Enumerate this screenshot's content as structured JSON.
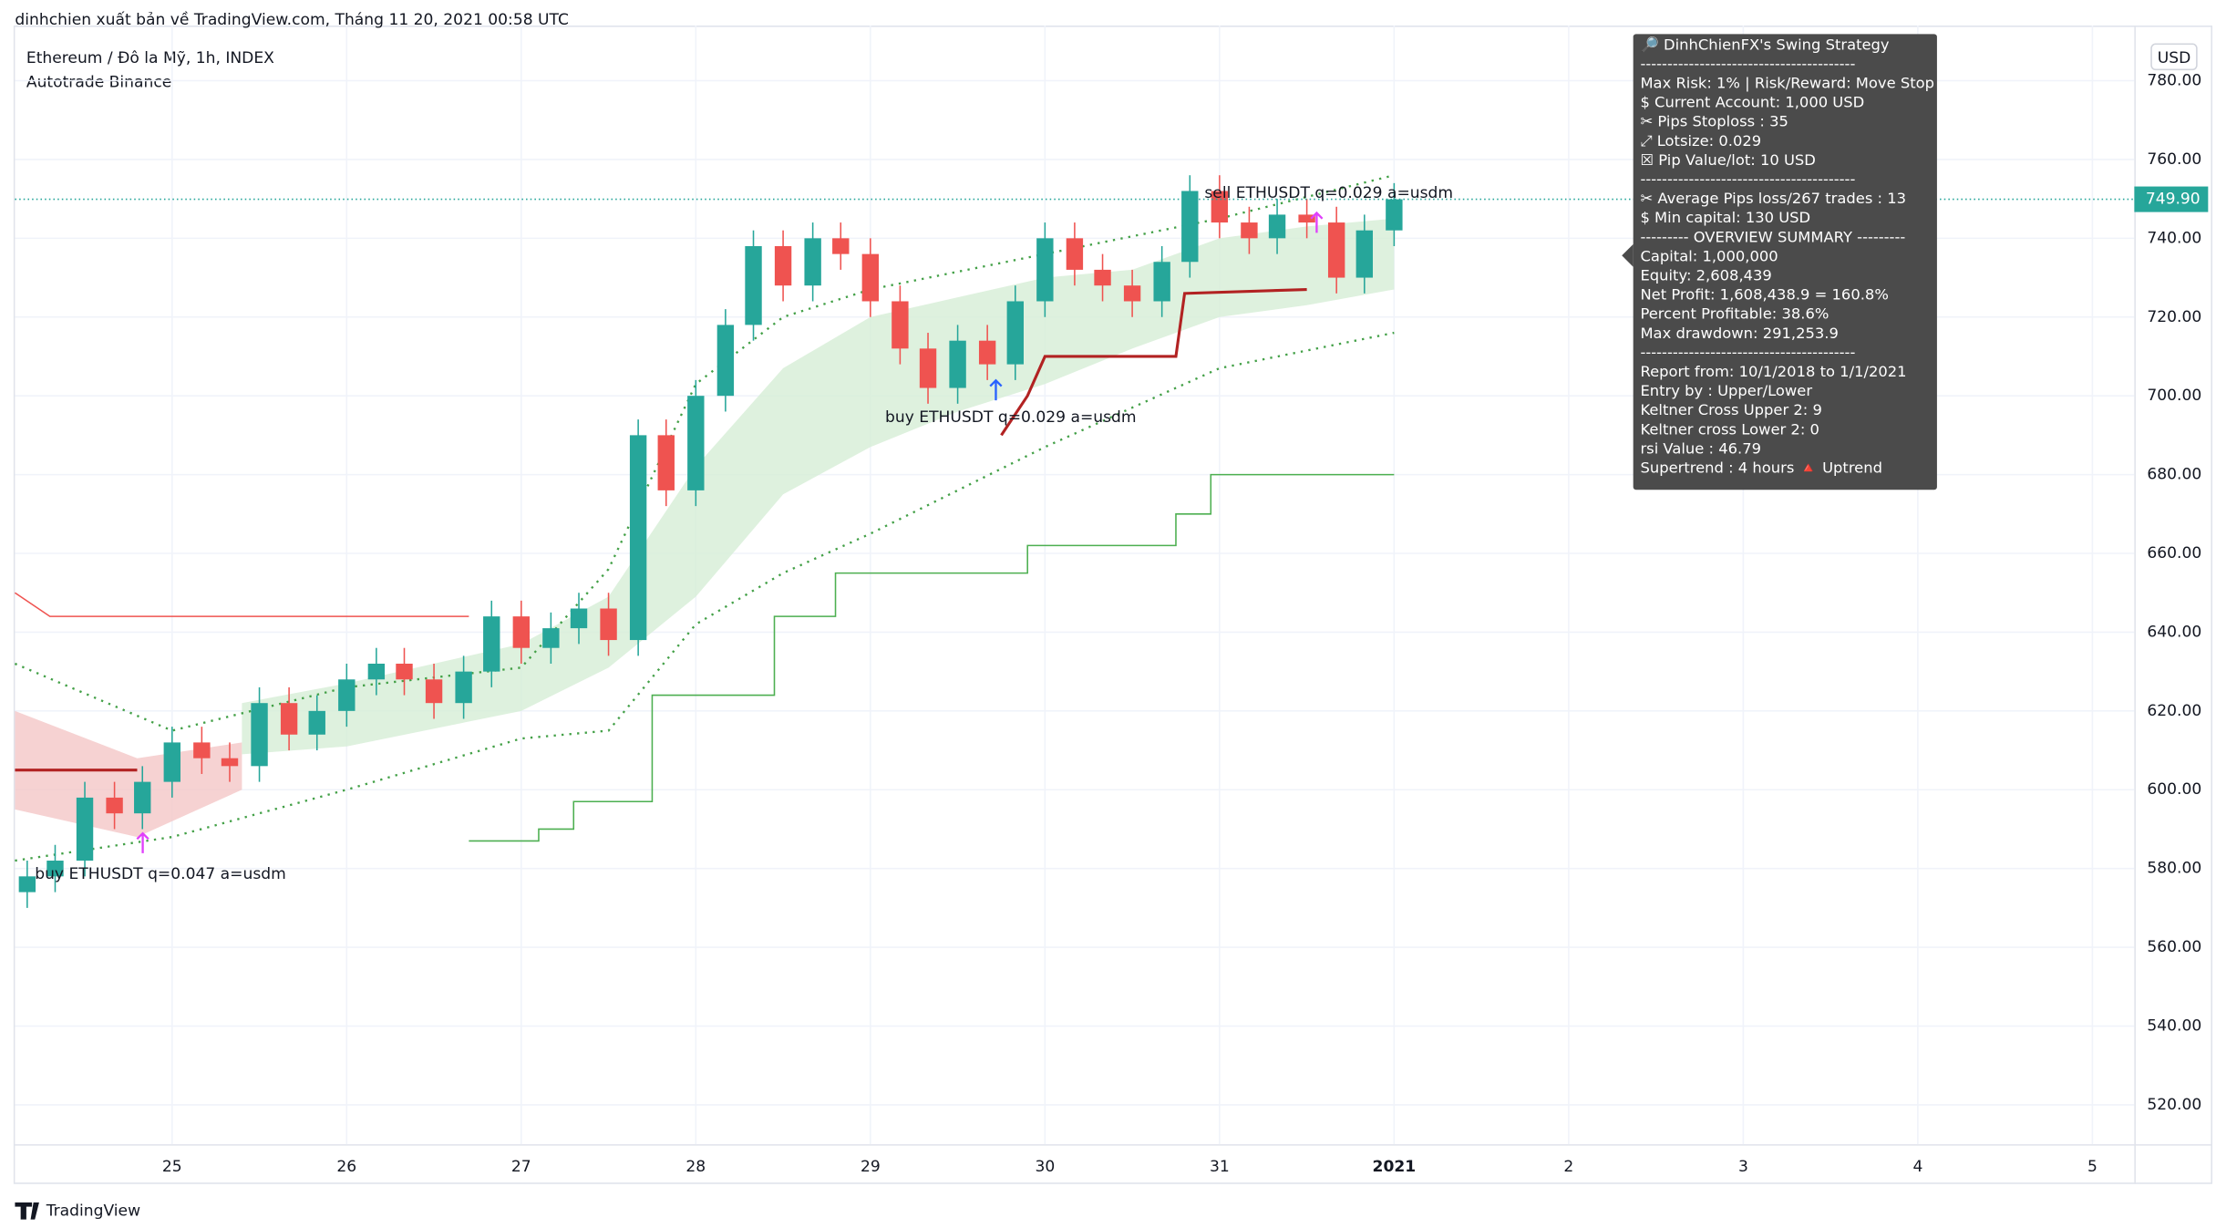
{
  "chart_data": {
    "type": "candlestick",
    "header": "dinhchien xuất bản về TradingView.com, Tháng 11 20, 2021 00:58 UTC",
    "title": "Ethereum / Đô la Mỹ, 1h, INDEX",
    "subtitle": "Autotrade Binance",
    "currency": "USD",
    "brand": "TradingView",
    "up_color": "#26a69a",
    "down_color": "#ef5350",
    "x": [
      24.17,
      24.33,
      24.5,
      24.67,
      24.83,
      25,
      25.17,
      25.33,
      25.5,
      25.67,
      25.83,
      26,
      26.17,
      26.33,
      26.5,
      26.67,
      26.83,
      27,
      27.17,
      27.33,
      27.5,
      27.67,
      27.83,
      28,
      28.17,
      28.33,
      28.5,
      28.67,
      28.83,
      29,
      29.17,
      29.33,
      29.5,
      29.67,
      29.83,
      30,
      30.17,
      30.33,
      30.5,
      30.67,
      30.83,
      31,
      31.17,
      31.33,
      31.5,
      31.67,
      31.83,
      32
    ],
    "open": [
      574,
      578,
      582,
      598,
      594,
      602,
      612,
      608,
      606,
      622,
      614,
      620,
      628,
      632,
      628,
      622,
      630,
      644,
      636,
      641,
      646,
      638,
      690,
      676,
      700,
      718,
      738,
      728,
      740,
      736,
      724,
      712,
      702,
      714,
      708,
      724,
      740,
      732,
      728,
      724,
      734,
      752,
      744,
      740,
      746,
      744,
      730,
      742
    ],
    "high": [
      582,
      586,
      602,
      602,
      606,
      616,
      616,
      612,
      626,
      626,
      624,
      632,
      636,
      636,
      632,
      634,
      648,
      648,
      645,
      650,
      650,
      694,
      694,
      704,
      722,
      742,
      742,
      744,
      744,
      740,
      728,
      716,
      718,
      718,
      728,
      744,
      744,
      736,
      732,
      738,
      756,
      756,
      748,
      750,
      750,
      748,
      746,
      754
    ],
    "low": [
      570,
      574,
      578,
      590,
      590,
      598,
      604,
      602,
      602,
      610,
      610,
      616,
      624,
      624,
      618,
      618,
      626,
      632,
      632,
      637,
      634,
      634,
      672,
      672,
      696,
      714,
      724,
      724,
      732,
      720,
      708,
      698,
      698,
      704,
      704,
      720,
      728,
      724,
      720,
      720,
      730,
      740,
      736,
      736,
      740,
      726,
      726,
      738
    ],
    "close": [
      578,
      582,
      598,
      594,
      602,
      612,
      608,
      606,
      622,
      614,
      620,
      628,
      632,
      628,
      622,
      630,
      644,
      636,
      641,
      646,
      638,
      690,
      676,
      700,
      718,
      738,
      728,
      740,
      736,
      724,
      712,
      702,
      714,
      708,
      724,
      740,
      732,
      728,
      724,
      734,
      752,
      744,
      740,
      746,
      744,
      730,
      742,
      749.9
    ],
    "bands": [
      {
        "color": "#f4c7c7",
        "x": [
          24.1,
          24.8,
          25.4
        ],
        "upper": [
          620,
          608,
          612
        ],
        "lower": [
          595,
          588,
          600
        ]
      },
      {
        "color": "#d6eed6",
        "x": [
          25.4,
          26,
          27,
          27.5,
          28,
          28.5,
          29,
          29.5,
          30,
          30.5,
          31,
          31.5,
          32
        ],
        "upper": [
          622,
          627,
          637,
          649,
          682,
          707,
          720,
          725,
          730,
          732,
          740,
          743,
          745
        ],
        "lower": [
          609,
          611,
          620,
          631,
          649,
          675,
          687,
          696,
          703,
          712,
          720,
          723,
          727
        ]
      }
    ],
    "lines": [
      {
        "color": "#ef5350",
        "dash": false,
        "step": false,
        "width": 1,
        "x": [
          24.1,
          24.3,
          26.7
        ],
        "values": [
          650,
          644,
          644
        ]
      },
      {
        "color": "#b22222",
        "dash": false,
        "step": false,
        "width": 2,
        "x": [
          24.1,
          24.8
        ],
        "values": [
          605,
          605
        ]
      },
      {
        "color": "#43a047",
        "dash": true,
        "step": false,
        "width": 1.5,
        "x": [
          24.1,
          25,
          26,
          27,
          27.5,
          28,
          28.5,
          29,
          30,
          31,
          32
        ],
        "values": [
          632,
          615,
          626,
          631,
          656,
          703,
          720,
          727,
          736,
          745,
          756
        ]
      },
      {
        "color": "#43a047",
        "dash": true,
        "step": false,
        "width": 1.5,
        "x": [
          24.1,
          25,
          26,
          27,
          27.5,
          28,
          28.5,
          29,
          30,
          31,
          32
        ],
        "values": [
          582,
          588,
          600,
          613,
          615,
          642,
          655,
          665,
          687,
          707,
          716
        ]
      },
      {
        "color": "#4caf50",
        "dash": false,
        "step": true,
        "width": 1,
        "x": [
          26.7,
          27.1,
          27.3,
          27.75,
          28.45,
          28.8,
          29.9,
          30.75,
          30.95,
          32
        ],
        "values": [
          587,
          590,
          597,
          624,
          644,
          655,
          662,
          670,
          680,
          680
        ]
      },
      {
        "color": "#b22222",
        "dash": false,
        "step": false,
        "width": 2,
        "x": [
          29.75,
          29.9,
          30,
          30.75,
          30.8,
          31.5
        ],
        "values": [
          690,
          700,
          710,
          710,
          726,
          727
        ]
      }
    ],
    "last_price": {
      "value": 749.9,
      "label": "749.90"
    },
    "annotations": [
      "sell ETHUSDT q=0.029 a=usdm",
      "buy ETHUSDT q=0.029 a=usdm",
      "buy ETHUSDT q=0.047 a=usdm"
    ],
    "xlim": [
      24.1,
      36.24
    ],
    "xticks": [
      25,
      26,
      27,
      28,
      29,
      30,
      31,
      {
        "value": 32,
        "label": "2021"
      },
      {
        "value": 33,
        "label": "2"
      },
      {
        "value": 34,
        "label": "3"
      },
      {
        "value": 35,
        "label": "4"
      },
      {
        "value": 36,
        "label": "5"
      }
    ],
    "ylim": [
      510,
      794
    ],
    "yticks": [
      {
        "value": 520,
        "label": "520.00"
      },
      {
        "value": 540,
        "label": "540.00"
      },
      {
        "value": 560,
        "label": "560.00"
      },
      {
        "value": 580,
        "label": "580.00"
      },
      {
        "value": 600,
        "label": "600.00"
      },
      {
        "value": 620,
        "label": "620.00"
      },
      {
        "value": 640,
        "label": "640.00"
      },
      {
        "value": 660,
        "label": "660.00"
      },
      {
        "value": 680,
        "label": "680.00"
      },
      {
        "value": 700,
        "label": "700.00"
      },
      {
        "value": 720,
        "label": "720.00"
      },
      {
        "value": 740,
        "label": "740.00"
      },
      {
        "value": 760,
        "label": "760.00"
      },
      {
        "value": 780,
        "label": "780.00"
      }
    ],
    "info_box": [
      "🔎 DinhChienFX's Swing Strategy",
      "----------------------------------------",
      "Max Risk: 1% | Risk/Reward: Move Stop",
      "$ Current Account: 1,000 USD",
      "✂ Pips Stoploss : 35",
      "⤢ Lotsize: 0.029",
      "☒ Pip Value/lot: 10 USD",
      "----------------------------------------",
      "✂ Average Pips loss/267 trades : 13",
      "$ Min capital: 130 USD",
      "--------- OVERVIEW SUMMARY ---------",
      "Capital: 1,000,000",
      "Equity: 2,608,439",
      "Net Profit: 1,608,438.9 = 160.8%",
      "Percent Profitable: 38.6%",
      "Max drawdown: 291,253.9",
      "----------------------------------------",
      "Report from: 10/1/2018 to 1/1/2021",
      "Entry by : Upper/Lower",
      "Keltner Cross Upper 2: 9",
      "Keltner cross Lower 2: 0",
      "rsi Value : 46.79",
      "Supertrend : 4 hours 🔺 Uptrend"
    ]
  }
}
